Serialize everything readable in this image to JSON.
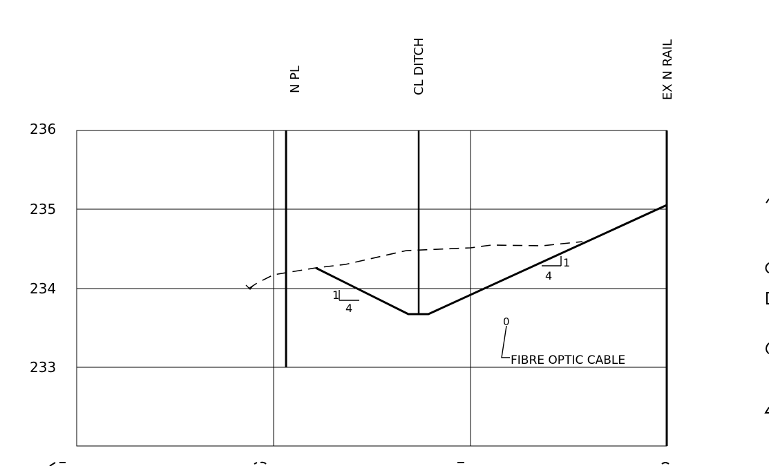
{
  "elevation_labels": [
    "236",
    "235",
    "234",
    "233"
  ],
  "vertical_markers": {
    "property_line": "N PL",
    "ditch_centerline": "CL DITCH",
    "rail": "EX N RAIL"
  },
  "slope_labels": {
    "left": {
      "rise": "1",
      "run": "4"
    },
    "right": {
      "rise": "1",
      "run": "4"
    }
  },
  "utility_label": "FIBRE OPTIC CABLE",
  "utility_marker": "0",
  "chart_data": {
    "type": "line",
    "yticks": [
      236,
      235,
      234,
      233
    ],
    "ylim": [
      232,
      236
    ],
    "series": [
      {
        "name": "",
        "style": "dashed",
        "x": [
          12.8,
          12.5,
          11.9,
          10.8,
          9.8,
          8.3,
          7.4,
          6.2,
          4.4
        ],
        "y": [
          234.0,
          234.18,
          234.28,
          234.3,
          234.46,
          234.5,
          234.54,
          234.54,
          234.6
        ]
      },
      {
        "name": "",
        "style": "solid",
        "x": [
          9.8,
          7.4,
          6.6,
          2.2
        ],
        "y": [
          234.27,
          233.67,
          233.67,
          235.08
        ]
      }
    ]
  },
  "colors": {
    "line": "#000000",
    "background": "#ffffff"
  }
}
